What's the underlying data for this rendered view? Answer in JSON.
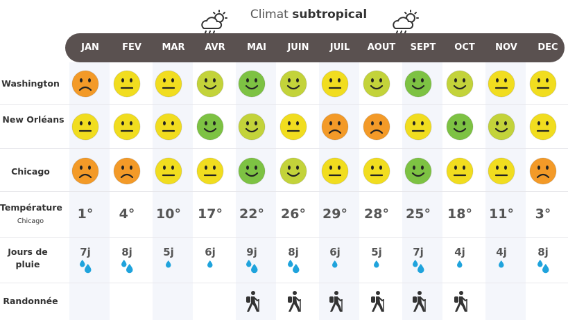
{
  "title": {
    "prefix": "Climat ",
    "strong": "subtropical",
    "icon": "cloud-sun-rain-icon"
  },
  "months": [
    "JAN",
    "FEV",
    "MAR",
    "AVR",
    "MAI",
    "JUIN",
    "JUIL",
    "AOUT",
    "SEPT",
    "OCT",
    "NOV",
    "DEC"
  ],
  "colors": {
    "month_bar": "#5a5150",
    "good": "#7dc243",
    "fair": "#c3d33a",
    "neutral": "#f1dd1f",
    "bad": "#f39a28",
    "drop": "#1fa3dc"
  },
  "rows": {
    "washington": {
      "label": "Washington",
      "ratings": [
        "bad",
        "neutral",
        "neutral",
        "fair",
        "good",
        "fair",
        "neutral",
        "fair",
        "good",
        "fair",
        "neutral",
        "neutral"
      ]
    },
    "new_orleans": {
      "label": "New Orléans",
      "ratings": [
        "neutral",
        "neutral",
        "neutral",
        "good",
        "fair",
        "neutral",
        "bad",
        "bad",
        "neutral",
        "good",
        "fair",
        "neutral"
      ]
    },
    "chicago": {
      "label": "Chicago",
      "ratings": [
        "bad",
        "bad",
        "neutral",
        "neutral",
        "good",
        "fair",
        "neutral",
        "neutral",
        "good",
        "neutral",
        "neutral",
        "bad"
      ]
    },
    "temperature": {
      "label": "Température",
      "sublabel": "Chicago",
      "values": [
        "1°",
        "4°",
        "10°",
        "17°",
        "22°",
        "26°",
        "29°",
        "28°",
        "25°",
        "18°",
        "11°",
        "3°"
      ]
    },
    "rain": {
      "label": "Jours de pluie",
      "values": [
        "7j",
        "8j",
        "5j",
        "6j",
        "9j",
        "8j",
        "6j",
        "5j",
        "7j",
        "4j",
        "4j",
        "8j"
      ],
      "drop_levels": [
        3,
        3,
        1,
        1,
        3,
        3,
        1,
        1,
        3,
        1,
        1,
        3
      ]
    },
    "hiking": {
      "label": "Randonnée",
      "active": [
        false,
        false,
        false,
        false,
        true,
        true,
        true,
        true,
        true,
        true,
        false,
        false
      ],
      "icon": "hiker-icon"
    }
  }
}
